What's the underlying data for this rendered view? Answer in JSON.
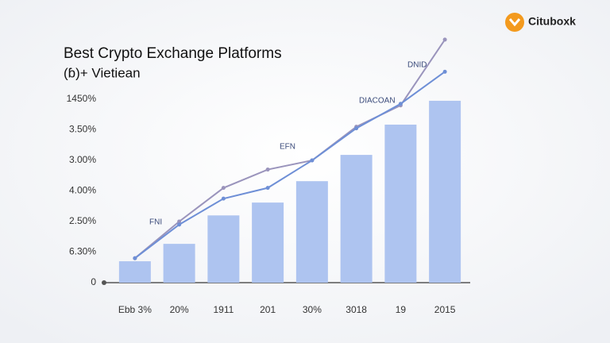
{
  "brand": "Cituboxk",
  "chart_data": {
    "type": "bar",
    "title": "Best Crypto Exchange Platforms",
    "subtitle": "(ɓ)+ Vietiean",
    "categories": [
      "Ebb 3%",
      "20%",
      "1911",
      "201",
      "30%",
      "3018",
      "19",
      "2015"
    ],
    "values": [
      0.7,
      1.27,
      2.2,
      2.62,
      3.32,
      4.18,
      5.17,
      5.95
    ],
    "color": "#aec4f0",
    "series": [
      {
        "color": "#9a94bc",
        "values": [
          0.8,
          2.0,
          3.1,
          3.7,
          4.0,
          5.1,
          5.8,
          7.95
        ]
      },
      {
        "color": "#6e8fd6",
        "values": [
          0.8,
          1.9,
          2.75,
          3.1,
          4.0,
          5.05,
          5.85,
          6.9
        ]
      }
    ],
    "annotations": [
      "DNID",
      "DIACOAN",
      "EFN",
      "FNI"
    ],
    "ylim": [
      0,
      8
    ],
    "yticks": [
      {
        "value": 0,
        "label": "0"
      },
      {
        "value": 1,
        "label": "6.30%"
      },
      {
        "value": 2,
        "label": "2.50%"
      },
      {
        "value": 3,
        "label": "4.00%"
      },
      {
        "value": 4,
        "label": "3.00%"
      },
      {
        "value": 5,
        "label": "3.50%"
      },
      {
        "value": 6,
        "label": "1450%"
      }
    ],
    "grid": false
  }
}
